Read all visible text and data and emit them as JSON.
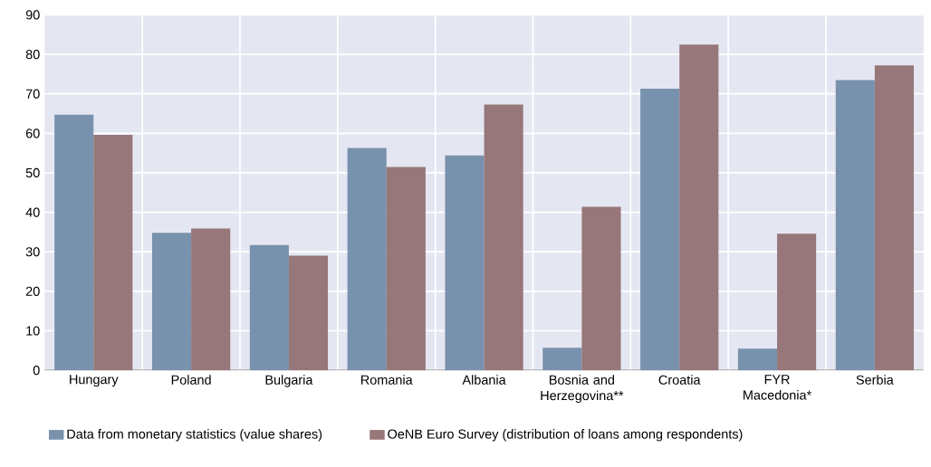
{
  "chart_data": {
    "type": "bar",
    "categories": [
      "Hungary",
      "Poland",
      "Bulgaria",
      "Romania",
      "Albania",
      "Bosnia and Herzegovina**",
      "Croatia",
      "FYR Macedonia*",
      "Serbia"
    ],
    "series": [
      {
        "name": "Data from monetary statistics (value shares)",
        "color": "#7891ad",
        "values": [
          64.7,
          34.8,
          31.7,
          56.3,
          54.4,
          5.7,
          71.3,
          5.5,
          73.5
        ]
      },
      {
        "name": "OeNB Euro Survey (distribution of loans among respondents)",
        "color": "#977779",
        "values": [
          59.6,
          35.9,
          29.0,
          51.5,
          67.3,
          41.4,
          82.5,
          34.6,
          77.2
        ]
      }
    ],
    "ylim": [
      0,
      90
    ],
    "yticks": [
      0,
      10,
      20,
      30,
      40,
      50,
      60,
      70,
      80,
      90
    ],
    "grid": true,
    "legend": "bottom"
  }
}
